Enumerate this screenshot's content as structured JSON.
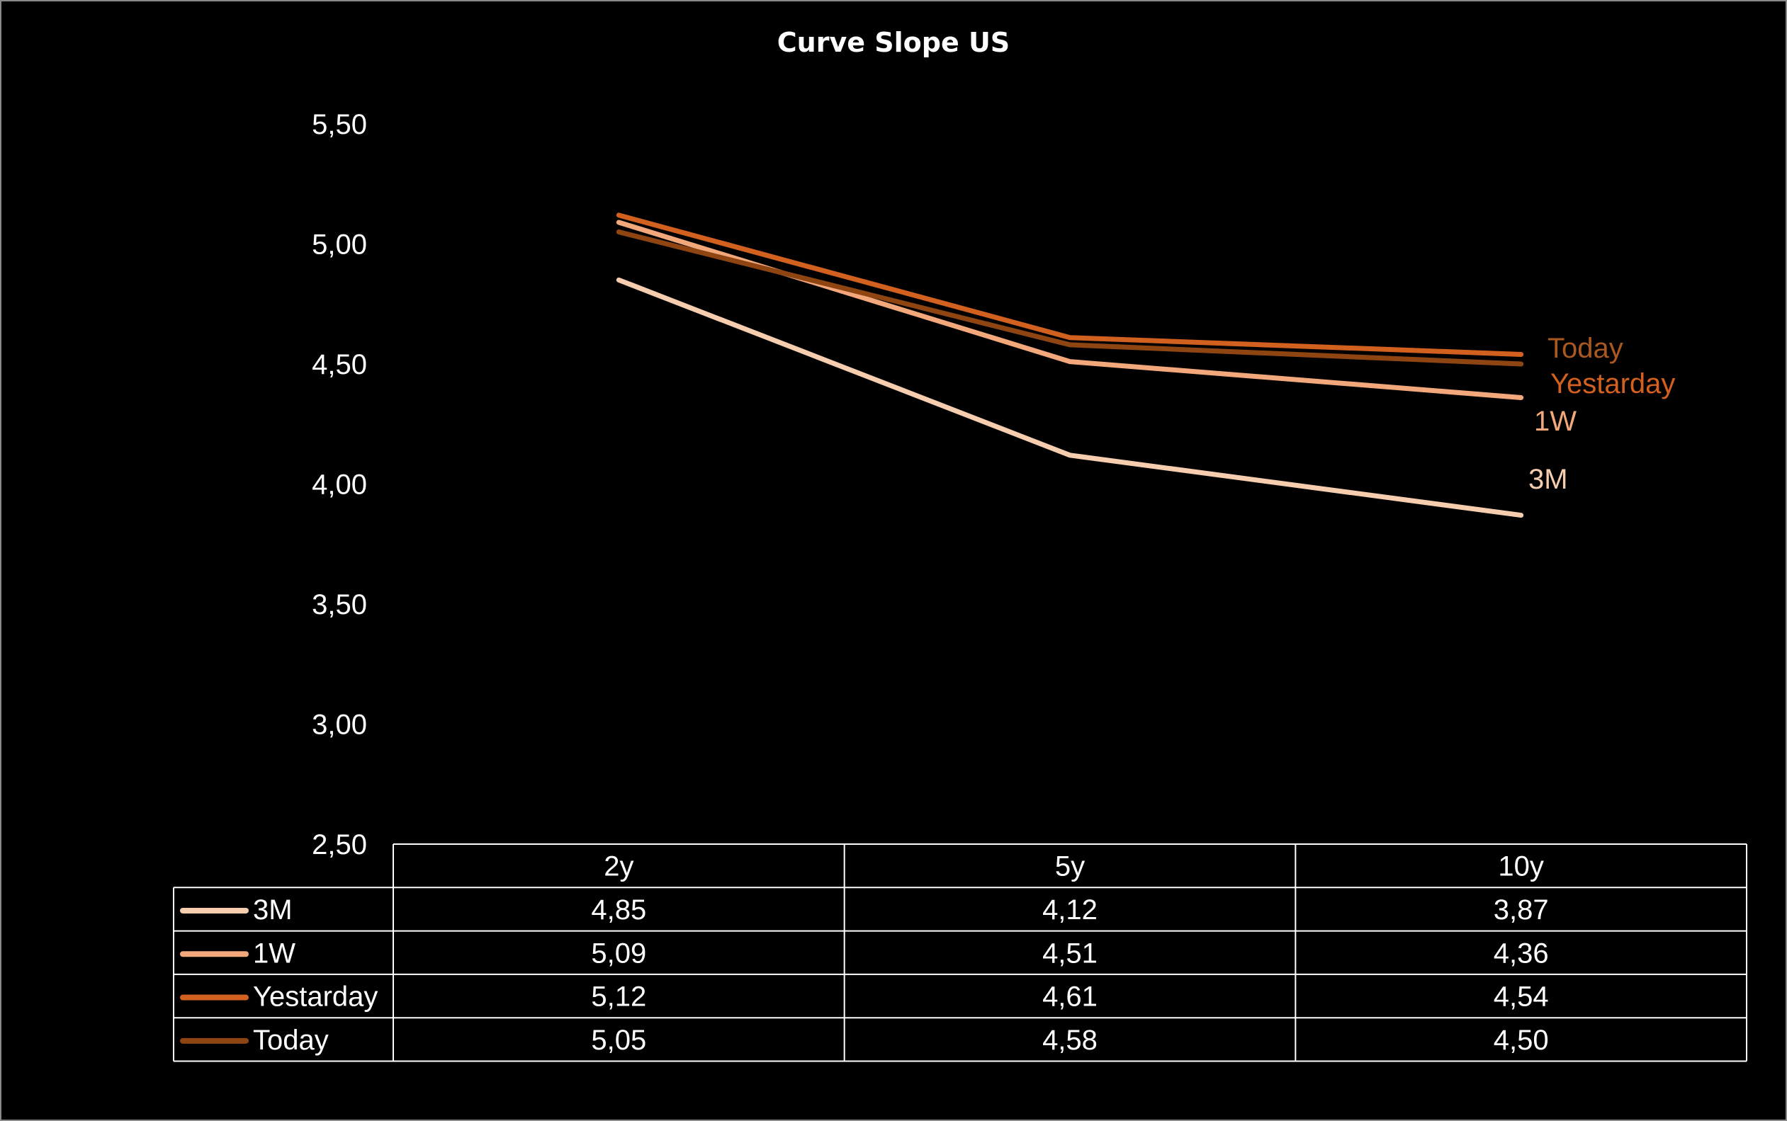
{
  "chart_data": {
    "type": "line",
    "title": "Curve Slope US",
    "categories": [
      "2y",
      "5y",
      "10y"
    ],
    "ylim": [
      2.5,
      5.5
    ],
    "yticks": [
      "5,50",
      "5,00",
      "4,50",
      "4,00",
      "3,50",
      "3,00",
      "2,50"
    ],
    "ytick_values": [
      5.5,
      5.0,
      4.5,
      4.0,
      3.5,
      3.0,
      2.5
    ],
    "grid": false,
    "legend": "data-table",
    "series": [
      {
        "name": "3M",
        "color": "#f7cdb0",
        "values": [
          4.85,
          4.12,
          3.87
        ],
        "labels": [
          "4,85",
          "4,12",
          "3,87"
        ]
      },
      {
        "name": "1W",
        "color": "#f2a87a",
        "values": [
          5.09,
          4.51,
          4.36
        ],
        "labels": [
          "5,09",
          "4,51",
          "4,36"
        ]
      },
      {
        "name": "Yestarday",
        "color": "#d2601e",
        "values": [
          5.12,
          4.61,
          4.54
        ],
        "labels": [
          "5,12",
          "4,61",
          "4,54"
        ]
      },
      {
        "name": "Today",
        "color": "#8f4512",
        "values": [
          5.05,
          4.58,
          4.5
        ],
        "labels": [
          "5,05",
          "4,58",
          "4,50"
        ]
      }
    ],
    "end_labels": [
      {
        "text": "Today",
        "color": "#a95821"
      },
      {
        "text": "Yestarday",
        "color": "#d2601e"
      },
      {
        "text": "1W",
        "color": "#f2a87a"
      },
      {
        "text": "3M",
        "color": "#f7cdb0"
      }
    ]
  }
}
